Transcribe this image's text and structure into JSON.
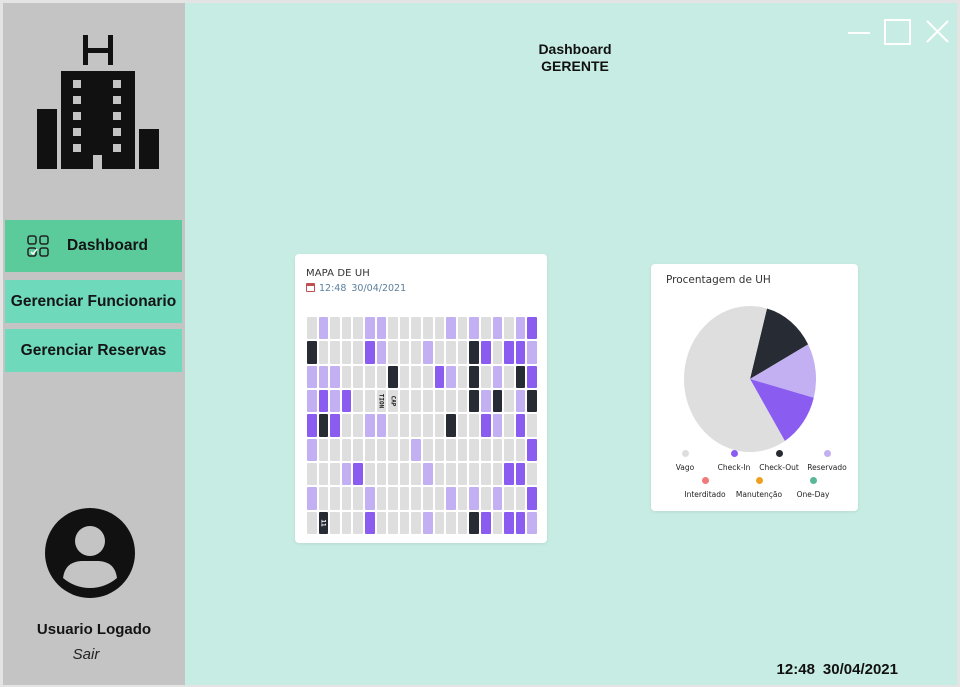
{
  "sidebar": {
    "nav": [
      {
        "label": "Dashboard"
      },
      {
        "label": "Gerenciar Funcionario"
      },
      {
        "label": "Gerenciar Reservas"
      }
    ],
    "user": {
      "name": "Usuario Logado",
      "logout": "Sair"
    }
  },
  "header": {
    "title_line1": "Dashboard",
    "title_line2": "GERENTE"
  },
  "footer": {
    "time": "12:48",
    "date": "30/04/2021"
  },
  "colors": {
    "vago": "#dededf",
    "reservado": "#c3b0f2",
    "check_in": "#8b5cf0",
    "check_out": "#272c34",
    "interditado": "#f07a7a",
    "manutencao": "#f0a020",
    "one_day": "#5ab89a",
    "accent": "#5ccb9b"
  },
  "map": {
    "title": "MAPA DE UH",
    "time": "12:48",
    "date": "30/04/2021",
    "labels": [
      {
        "row": 3,
        "col": 6,
        "text": "TION"
      },
      {
        "row": 3,
        "col": 7,
        "text": "CAP"
      },
      {
        "row": 8,
        "col": 1,
        "text": "11"
      }
    ],
    "rows": [
      [
        0,
        1,
        0,
        0,
        0,
        1,
        1,
        0,
        0,
        0,
        0,
        0,
        1,
        0,
        1,
        0,
        1,
        0,
        1,
        2
      ],
      [
        3,
        0,
        0,
        0,
        0,
        2,
        1,
        0,
        0,
        0,
        1,
        0,
        0,
        0,
        3,
        2,
        0,
        2,
        2,
        1
      ],
      [
        1,
        1,
        1,
        0,
        0,
        0,
        0,
        3,
        0,
        0,
        0,
        2,
        1,
        0,
        3,
        0,
        1,
        0,
        3,
        2
      ],
      [
        1,
        2,
        1,
        2,
        0,
        0,
        0,
        0,
        0,
        0,
        0,
        0,
        0,
        0,
        3,
        1,
        3,
        0,
        1,
        3
      ],
      [
        2,
        3,
        2,
        0,
        0,
        1,
        1,
        0,
        0,
        0,
        0,
        0,
        3,
        0,
        0,
        2,
        1,
        0,
        2,
        0
      ],
      [
        1,
        0,
        0,
        0,
        0,
        0,
        0,
        0,
        0,
        1,
        0,
        0,
        0,
        0,
        0,
        0,
        0,
        0,
        0,
        2
      ],
      [
        0,
        0,
        0,
        1,
        2,
        0,
        0,
        0,
        0,
        0,
        1,
        0,
        0,
        0,
        0,
        0,
        0,
        2,
        2,
        0
      ],
      [
        1,
        0,
        0,
        0,
        0,
        1,
        0,
        0,
        0,
        0,
        0,
        0,
        1,
        0,
        1,
        0,
        1,
        0,
        0,
        2
      ],
      [
        0,
        3,
        0,
        0,
        0,
        2,
        0,
        0,
        0,
        0,
        1,
        0,
        0,
        0,
        3,
        2,
        0,
        2,
        2,
        1
      ]
    ]
  },
  "pie": {
    "title": "Procentagem de UH",
    "chart_data": {
      "type": "pie",
      "slices": [
        {
          "name": "Check-Out",
          "value": 13
        },
        {
          "name": "Reservado",
          "value": 12
        },
        {
          "name": "Check-In",
          "value": 12
        },
        {
          "name": "Vago",
          "value": 63
        }
      ]
    },
    "legend": [
      {
        "label": "Vago",
        "color": "#dededf"
      },
      {
        "label": "Check-In",
        "color": "#8b5cf0"
      },
      {
        "label": "Check-Out",
        "color": "#272c34"
      },
      {
        "label": "Reservado",
        "color": "#c3b0f2"
      },
      {
        "label": "Interditado",
        "color": "#f07a7a"
      },
      {
        "label": "Manutenção",
        "color": "#f0a020"
      },
      {
        "label": "One-Day",
        "color": "#5ab89a"
      }
    ]
  }
}
